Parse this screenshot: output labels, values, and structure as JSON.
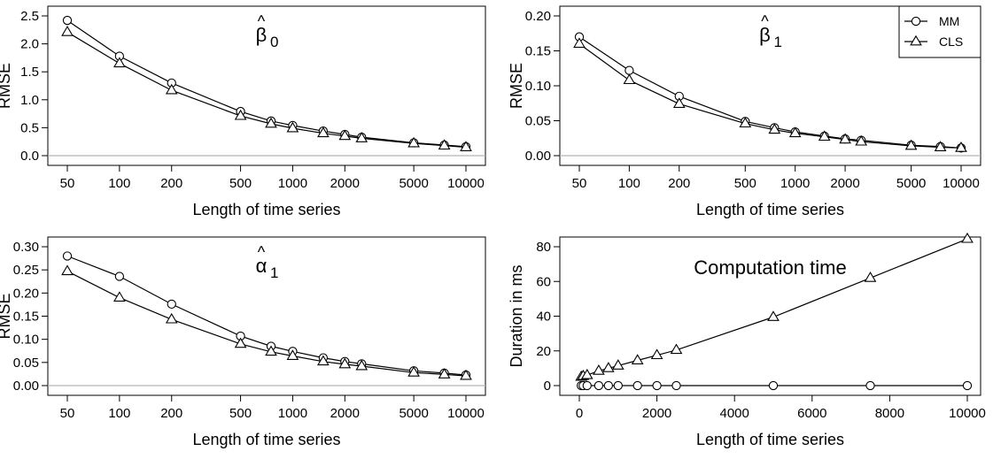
{
  "chart_data": [
    {
      "type": "line",
      "title": "β̂0",
      "title_parts": {
        "base": "β",
        "sub": "0",
        "hat": "^"
      },
      "xlabel": "Length of time series",
      "ylabel": "RMSE",
      "x_scale": "log",
      "x": [
        50,
        100,
        200,
        500,
        750,
        1000,
        1500,
        2000,
        2500,
        5000,
        7500,
        10000
      ],
      "xticks": [
        50,
        100,
        200,
        500,
        1000,
        2000,
        5000,
        10000
      ],
      "xtick_labels": [
        "50",
        "100",
        "200",
        "500",
        "1000",
        "2000",
        "5000",
        "10000"
      ],
      "ylim": [
        0,
        2.5
      ],
      "yticks": [
        0.0,
        0.5,
        1.0,
        1.5,
        2.0,
        2.5
      ],
      "ytick_labels": [
        "0.0",
        "0.5",
        "1.0",
        "1.5",
        "2.0",
        "2.5"
      ],
      "reference_line": 0,
      "series": [
        {
          "name": "MM",
          "marker": "circle",
          "values": [
            2.42,
            1.78,
            1.3,
            0.79,
            0.62,
            0.54,
            0.44,
            0.38,
            0.33,
            0.23,
            0.19,
            0.16
          ]
        },
        {
          "name": "CLS",
          "marker": "triangle",
          "values": [
            2.21,
            1.65,
            1.17,
            0.71,
            0.57,
            0.49,
            0.4,
            0.35,
            0.31,
            0.22,
            0.18,
            0.15
          ]
        }
      ]
    },
    {
      "type": "line",
      "title": "β̂1",
      "title_parts": {
        "base": "β",
        "sub": "1",
        "hat": "^"
      },
      "xlabel": "Length of time series",
      "ylabel": "RMSE",
      "x_scale": "log",
      "x": [
        50,
        100,
        200,
        500,
        750,
        1000,
        1500,
        2000,
        2500,
        5000,
        7500,
        10000
      ],
      "xticks": [
        50,
        100,
        200,
        500,
        1000,
        2000,
        5000,
        10000
      ],
      "xtick_labels": [
        "50",
        "100",
        "200",
        "500",
        "1000",
        "2000",
        "5000",
        "10000"
      ],
      "ylim": [
        0,
        0.2
      ],
      "yticks": [
        0.0,
        0.05,
        0.1,
        0.15,
        0.2
      ],
      "ytick_labels": [
        "0.00",
        "0.05",
        "0.10",
        "0.15",
        "0.20"
      ],
      "reference_line": 0,
      "legend_position": "top-right",
      "series": [
        {
          "name": "MM",
          "marker": "circle",
          "values": [
            0.17,
            0.122,
            0.085,
            0.049,
            0.04,
            0.034,
            0.028,
            0.024,
            0.022,
            0.015,
            0.013,
            0.011
          ]
        },
        {
          "name": "CLS",
          "marker": "triangle",
          "values": [
            0.16,
            0.108,
            0.074,
            0.046,
            0.037,
            0.032,
            0.027,
            0.023,
            0.02,
            0.014,
            0.012,
            0.011
          ]
        }
      ]
    },
    {
      "type": "line",
      "title": "α̂1",
      "title_parts": {
        "base": "α",
        "sub": "1",
        "hat": "^"
      },
      "xlabel": "Length of time series",
      "ylabel": "RMSE",
      "x_scale": "log",
      "x": [
        50,
        100,
        200,
        500,
        750,
        1000,
        1500,
        2000,
        2500,
        5000,
        7500,
        10000
      ],
      "xticks": [
        50,
        100,
        200,
        500,
        1000,
        2000,
        5000,
        10000
      ],
      "xtick_labels": [
        "50",
        "100",
        "200",
        "500",
        "1000",
        "2000",
        "5000",
        "10000"
      ],
      "ylim": [
        0,
        0.3
      ],
      "yticks": [
        0.0,
        0.05,
        0.1,
        0.15,
        0.2,
        0.25,
        0.3
      ],
      "ytick_labels": [
        "0.00",
        "0.05",
        "0.10",
        "0.15",
        "0.20",
        "0.25",
        "0.30"
      ],
      "reference_line": 0,
      "series": [
        {
          "name": "MM",
          "marker": "circle",
          "values": [
            0.28,
            0.236,
            0.176,
            0.107,
            0.085,
            0.074,
            0.06,
            0.052,
            0.047,
            0.032,
            0.027,
            0.023
          ]
        },
        {
          "name": "CLS",
          "marker": "triangle",
          "values": [
            0.247,
            0.19,
            0.143,
            0.09,
            0.073,
            0.064,
            0.052,
            0.046,
            0.042,
            0.028,
            0.024,
            0.021
          ]
        }
      ]
    },
    {
      "type": "line",
      "title": "Computation time",
      "xlabel": "Length of time series",
      "ylabel": "Duration in ms",
      "x_scale": "linear",
      "x": [
        50,
        100,
        200,
        500,
        750,
        1000,
        1500,
        2000,
        2500,
        5000,
        7500,
        10000
      ],
      "xlim": [
        0,
        10000
      ],
      "xticks": [
        0,
        2000,
        4000,
        6000,
        8000,
        10000
      ],
      "xtick_labels": [
        "0",
        "2000",
        "4000",
        "6000",
        "8000",
        "10000"
      ],
      "ylim": [
        0,
        80
      ],
      "yticks": [
        0,
        20,
        40,
        60,
        80
      ],
      "ytick_labels": [
        "0",
        "20",
        "40",
        "60",
        "80"
      ],
      "series": [
        {
          "name": "MM",
          "marker": "circle",
          "values": [
            0,
            0,
            0,
            0,
            0,
            0,
            0,
            0,
            0,
            0,
            0,
            0
          ]
        },
        {
          "name": "CLS",
          "marker": "triangle",
          "values": [
            5,
            5.5,
            6,
            8.5,
            10,
            11.5,
            14.5,
            17.5,
            20.5,
            39.5,
            62,
            84.5
          ]
        }
      ]
    }
  ]
}
